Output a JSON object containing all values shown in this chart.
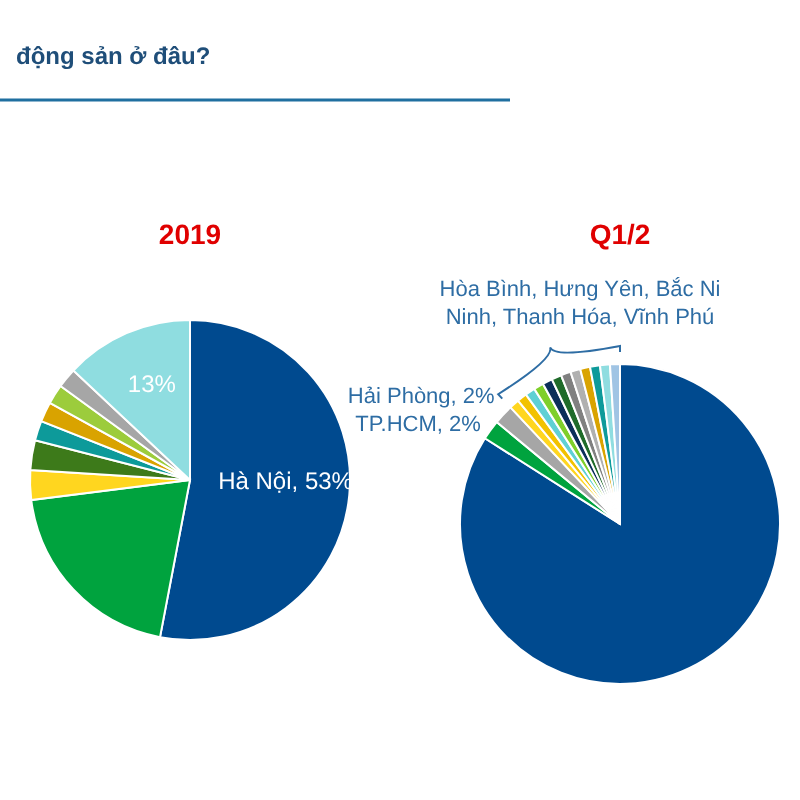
{
  "chart_data": [
    {
      "type": "pie",
      "title": "động sản ở đâu?",
      "subtitle": "2019",
      "categories": [
        "Hà Nội",
        null,
        null,
        null,
        null,
        null,
        null,
        null,
        null
      ],
      "values": [
        53,
        20,
        3,
        3,
        2,
        2,
        2,
        2,
        13
      ],
      "value_labels": [
        "53%",
        null,
        null,
        null,
        null,
        null,
        null,
        null,
        "13%"
      ],
      "colors": [
        "#004a8f",
        "#00a33e",
        "#ffd61f",
        "#3d7a1a",
        "#0d9a9a",
        "#d9a300",
        "#9ccc3c",
        "#a6a6a6",
        "#8fdde0"
      ]
    },
    {
      "type": "pie",
      "subtitle": "Q1/2",
      "categories": [
        null,
        "TP.HCM",
        "Hải Phòng",
        null,
        null,
        null,
        null,
        null,
        null,
        null,
        null,
        null,
        null,
        null,
        null
      ],
      "values": [
        84,
        2,
        2,
        1,
        1,
        1,
        1,
        1,
        1,
        1,
        1,
        1,
        1,
        1,
        1
      ],
      "value_labels": [
        null,
        "2%",
        "2%",
        null,
        null,
        null,
        null,
        null,
        null,
        null,
        null,
        null,
        null,
        null,
        null
      ],
      "colors": [
        "#004a8f",
        "#00a33e",
        "#a6a6a6",
        "#ffd61f",
        "#f2c200",
        "#5fd0d4",
        "#7fcf2a",
        "#0b2f5a",
        "#1f6b2a",
        "#808080",
        "#b0b0b0",
        "#d9a300",
        "#0d9a9a",
        "#8fdde0",
        "#a0c4e4"
      ],
      "annotations": [
        "Hòa Bình, Hưng Yên, Bắc Ni\nNinh, Thanh Hóa, Vĩnh Phú"
      ]
    }
  ]
}
